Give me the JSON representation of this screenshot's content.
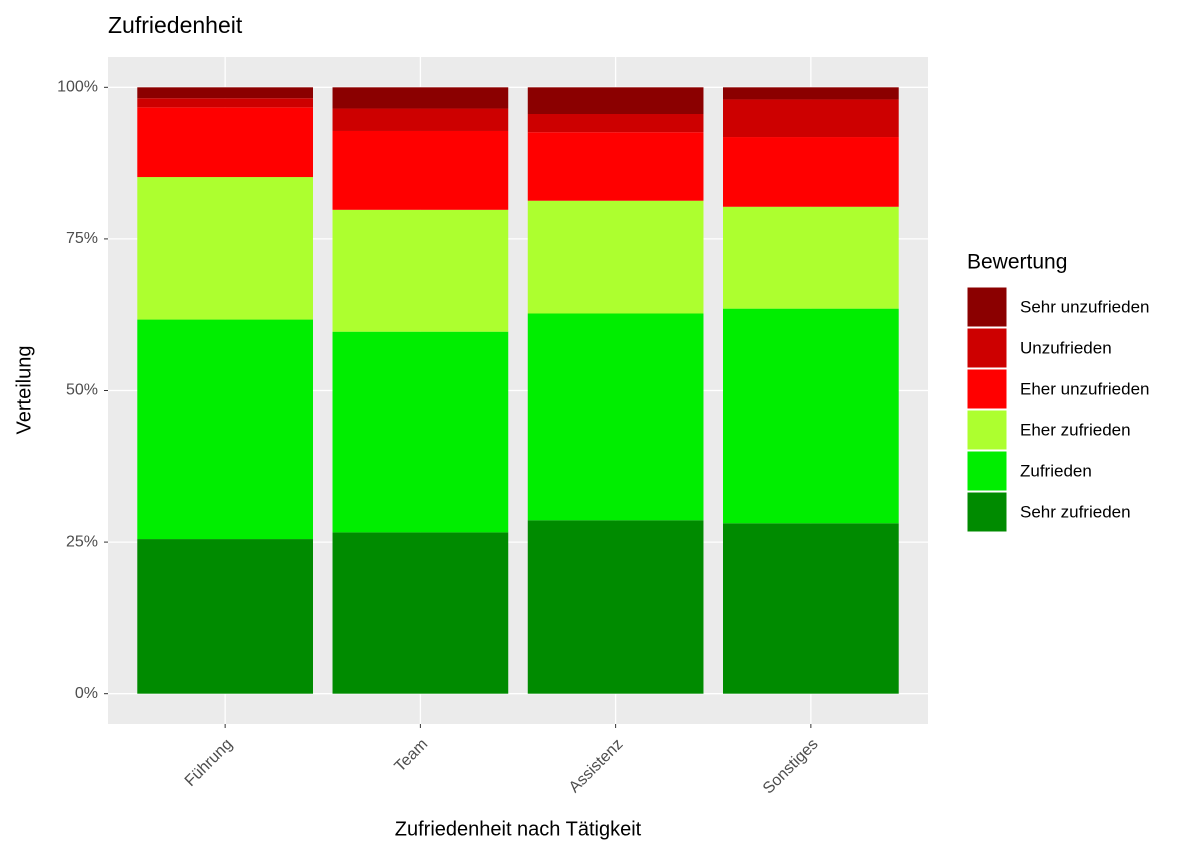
{
  "chart_data": {
    "type": "stacked_bar",
    "title": "Zufriedenheit",
    "x_label": "Zufriedenheit nach Tätigkeit",
    "y_label": "Verteilung",
    "categories": [
      "Führung",
      "Team",
      "Assistenz",
      "Sonstiges"
    ],
    "legend_title": "Bewertung",
    "legend_position": "right",
    "series": [
      {
        "name": "Sehr unzufrieden",
        "color": "#8b0000",
        "values": [
          1.8,
          3.5,
          4.4,
          2.0
        ]
      },
      {
        "name": "Unzufrieden",
        "color": "#cd0000",
        "values": [
          1.5,
          3.7,
          3.0,
          6.2
        ]
      },
      {
        "name": "Eher unzufrieden",
        "color": "#ff0000",
        "values": [
          11.5,
          13.0,
          11.3,
          11.5
        ]
      },
      {
        "name": "Eher zufrieden",
        "color": "#adff2f",
        "values": [
          23.5,
          20.1,
          18.6,
          16.8
        ]
      },
      {
        "name": "Zufrieden",
        "color": "#00ee00",
        "values": [
          36.2,
          33.1,
          34.1,
          35.4
        ]
      },
      {
        "name": "Sehr zufrieden",
        "color": "#008b00",
        "values": [
          25.5,
          26.6,
          28.6,
          28.1
        ]
      }
    ],
    "ylim": [
      -5,
      105
    ],
    "yticks": [
      {
        "value": 0,
        "label": "0%"
      },
      {
        "value": 25,
        "label": "25%"
      },
      {
        "value": 50,
        "label": "50%"
      },
      {
        "value": 75,
        "label": "75%"
      },
      {
        "value": 100,
        "label": "100%"
      }
    ],
    "grid": true
  }
}
